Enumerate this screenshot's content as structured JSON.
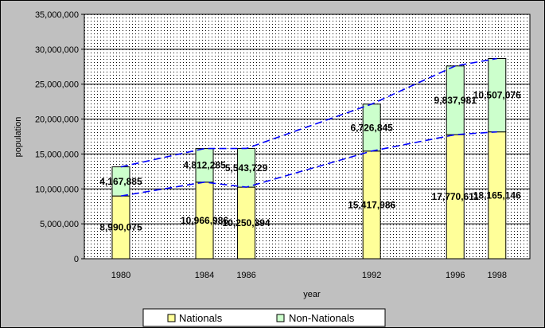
{
  "chart_data": {
    "type": "bar",
    "stacked": true,
    "categories": [
      "1980",
      "1984",
      "1986",
      "1992",
      "1996",
      "1998"
    ],
    "x": [
      1980,
      1984,
      1986,
      1992,
      1996,
      1998
    ],
    "series": [
      {
        "name": "Nationals",
        "values": [
          8990075,
          10966986,
          10250394,
          15417986,
          17770611,
          18165146
        ],
        "labels": [
          "8,990,075",
          "10,966,986",
          "10,250,394",
          "15,417,986",
          "17,770,611",
          "18,165,146"
        ]
      },
      {
        "name": "Non-Nationals",
        "values": [
          4167885,
          4812285,
          5543729,
          6726845,
          9837981,
          10507076
        ],
        "labels": [
          "4,167,885",
          "4,812,285",
          "5,543,729",
          "6,726,845",
          "9,837,981",
          "10,507,076"
        ]
      }
    ],
    "title": "",
    "xlabel": "year",
    "ylabel": "population",
    "ylim": [
      0,
      35000000
    ],
    "yticks": [
      0,
      5000000,
      10000000,
      15000000,
      20000000,
      25000000,
      30000000,
      35000000
    ],
    "ytick_labels": [
      "0",
      "5,000,000",
      "10,000,000",
      "15,000,000",
      "20,000,000",
      "25,000,000",
      "30,000,000",
      "35,000,000"
    ],
    "trend_lines": "dashed",
    "grid": true,
    "legend": "bottom",
    "colors": {
      "nationals": "#ffff99",
      "non_nationals": "#ccffcc",
      "trend": "#0000ff",
      "plot_bg": "#ffffff",
      "chart_bg": "#c0c0c0"
    }
  }
}
